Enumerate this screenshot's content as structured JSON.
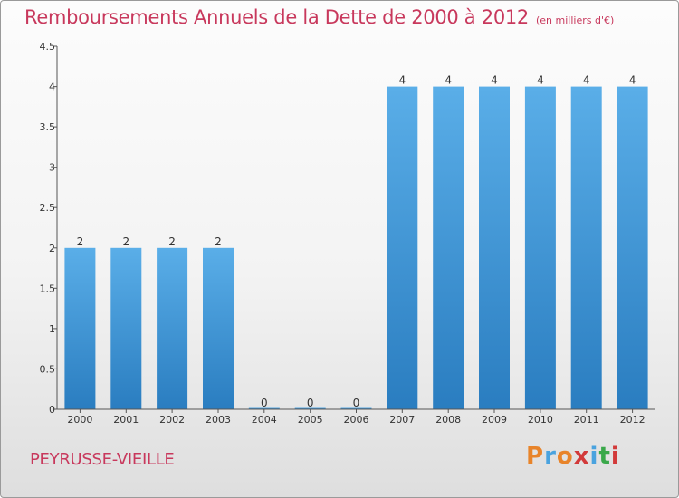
{
  "header": {
    "title": "Remboursements Annuels de la Dette de 2000 à 2012",
    "unit_note": "(en milliers d'€)"
  },
  "footer": {
    "place": "PEYRUSSE-VIEILLE",
    "logo": "Proxiti",
    "logo_colors": [
      "#e8842a",
      "#4aa3df",
      "#e8842a",
      "#d23a3a",
      "#4aa3df",
      "#3aa84a",
      "#d23a3a"
    ]
  },
  "colors": {
    "title": "#c8385c",
    "bar_top": "#5aaee8",
    "bar_bottom": "#2a7dc0"
  },
  "chart_data": {
    "type": "bar",
    "title": "Remboursements Annuels de la Dette de 2000 à 2012",
    "xlabel": "",
    "ylabel": "",
    "categories": [
      "2000",
      "2001",
      "2002",
      "2003",
      "2004",
      "2005",
      "2006",
      "2007",
      "2008",
      "2009",
      "2010",
      "2011",
      "2012"
    ],
    "values": [
      2,
      2,
      2,
      2,
      0,
      0,
      0,
      4,
      4,
      4,
      4,
      4,
      4
    ],
    "value_labels": [
      "2",
      "2",
      "2",
      "2",
      "0",
      "0",
      "0",
      "4",
      "4",
      "4",
      "4",
      "4",
      "4"
    ],
    "ylim": [
      0,
      4.5
    ],
    "yticks": [
      0,
      0.5,
      1,
      1.5,
      2,
      2.5,
      3,
      3.5,
      4,
      4.5
    ],
    "ytick_labels": [
      "0",
      "0.5",
      "1",
      "1.5",
      "2",
      "2.5",
      "3",
      "3.5",
      "4",
      "4.5"
    ],
    "grid": false,
    "legend": "none"
  }
}
